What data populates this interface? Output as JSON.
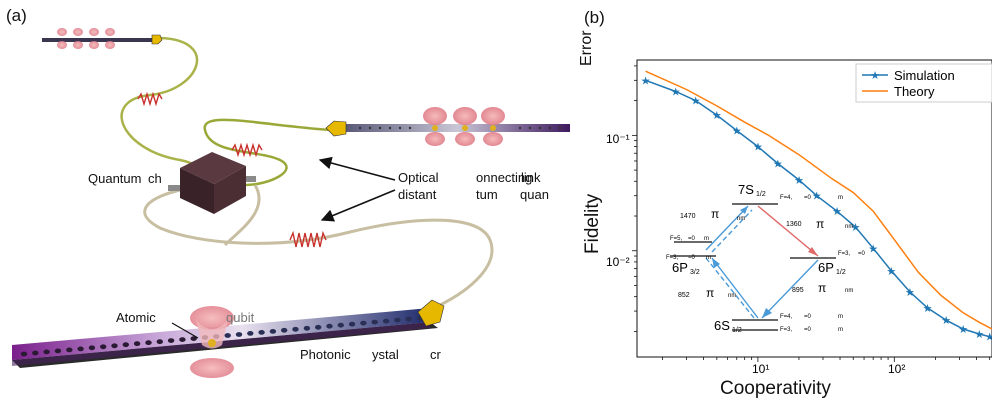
{
  "panel_a": {
    "label": "(a)",
    "text_quantum_ch": "Quantum",
    "text_ch": "ch",
    "text_optical": "Optical",
    "text_distant": "distant",
    "text_onnecting": "onnecting",
    "text_link": "link",
    "text_tum": "tum",
    "text_quan": "quan",
    "text_atomic": "Atomic",
    "text_qubit": "qubit",
    "text_photonic": "Photonic",
    "text_ystal": "ystal",
    "text_cr": "cr"
  },
  "panel_b": {
    "label": "(b)",
    "ylabel_top": "Error",
    "ylabel": "Fidelity",
    "xlabel": "Cooperativity",
    "legend": {
      "simulation": "Simulation",
      "theory": "Theory"
    },
    "yticks": [
      "10⁻¹",
      "10⁻²"
    ],
    "xticks": [
      "10¹",
      "10²"
    ],
    "inset": {
      "level_7s": "7S",
      "level_7s_sub": "1/2",
      "level_6p32": "6P",
      "level_6p32_sub": "3/2",
      "level_6p12": "6P",
      "level_6p12_sub": "1/2",
      "level_6s": "6S",
      "level_6s_sub": "1/2",
      "wl_1470": "1470",
      "wl_1360": "1360",
      "wl_852": "852",
      "wl_895": "895",
      "pi": "π",
      "nm": "nm",
      "f4_top": "F=4,",
      "f5": "F=5,",
      "f3_left": "F=3,",
      "f3_right": "F=3,",
      "f4_bottom": "F=4,",
      "f3_bottom": "F=3,",
      "mf0": "=0",
      "m": "m"
    }
  },
  "chart_data": {
    "type": "line",
    "xlabel": "Cooperativity",
    "ylabel": "Fidelity",
    "xscale": "log",
    "yscale": "log",
    "xlim": [
      1.3,
      520
    ],
    "ylim": [
      0.0012,
      0.45
    ],
    "legend_position": "top-right",
    "series": [
      {
        "name": "Simulation",
        "color": "#1f77b4",
        "marker": "star",
        "x": [
          1.5,
          2.5,
          3.5,
          5,
          7,
          10,
          14,
          20,
          27,
          38,
          52,
          70,
          95,
          130,
          175,
          240,
          320,
          420,
          500
        ],
        "y": [
          0.3,
          0.24,
          0.2,
          0.15,
          0.11,
          0.08,
          0.057,
          0.041,
          0.03,
          0.022,
          0.016,
          0.0105,
          0.0067,
          0.0044,
          0.0032,
          0.0025,
          0.0021,
          0.0019,
          0.0018
        ]
      },
      {
        "name": "Theory",
        "color": "#ff7f0e",
        "x": [
          1.5,
          3,
          5,
          8,
          12,
          20,
          35,
          50,
          70,
          100,
          150,
          220,
          320,
          420,
          520
        ],
        "y": [
          0.36,
          0.25,
          0.18,
          0.13,
          0.1,
          0.068,
          0.042,
          0.032,
          0.022,
          0.0125,
          0.0065,
          0.0041,
          0.0029,
          0.0024,
          0.0021
        ]
      }
    ]
  }
}
